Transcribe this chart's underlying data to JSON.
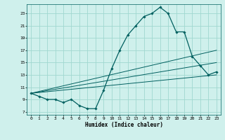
{
  "xlabel": "Humidex (Indice chaleur)",
  "bg_color": "#cff0ec",
  "line_color": "#005f5f",
  "grid_color": "#a0d8d0",
  "xlim": [
    -0.5,
    23.5
  ],
  "ylim": [
    6.5,
    24.5
  ],
  "yticks": [
    7,
    9,
    11,
    13,
    15,
    17,
    19,
    21,
    23
  ],
  "xticks": [
    0,
    1,
    2,
    3,
    4,
    5,
    6,
    7,
    8,
    9,
    10,
    11,
    12,
    13,
    14,
    15,
    16,
    17,
    18,
    19,
    20,
    21,
    22,
    23
  ],
  "main_x": [
    0,
    1,
    2,
    3,
    4,
    5,
    6,
    7,
    8,
    9,
    10,
    11,
    12,
    13,
    14,
    15,
    16,
    17,
    18,
    19,
    20,
    21,
    22,
    23
  ],
  "main_y": [
    10.0,
    9.5,
    9.0,
    9.0,
    8.5,
    9.0,
    8.0,
    7.5,
    7.5,
    10.5,
    14.0,
    17.0,
    19.5,
    21.0,
    22.5,
    23.0,
    24.0,
    23.0,
    20.0,
    20.0,
    16.0,
    14.5,
    13.0,
    13.5
  ],
  "line2_x": [
    0,
    23
  ],
  "line2_y": [
    10.0,
    17.0
  ],
  "line3_x": [
    0,
    23
  ],
  "line3_y": [
    10.0,
    15.0
  ],
  "line4_x": [
    0,
    23
  ],
  "line4_y": [
    10.0,
    13.0
  ]
}
